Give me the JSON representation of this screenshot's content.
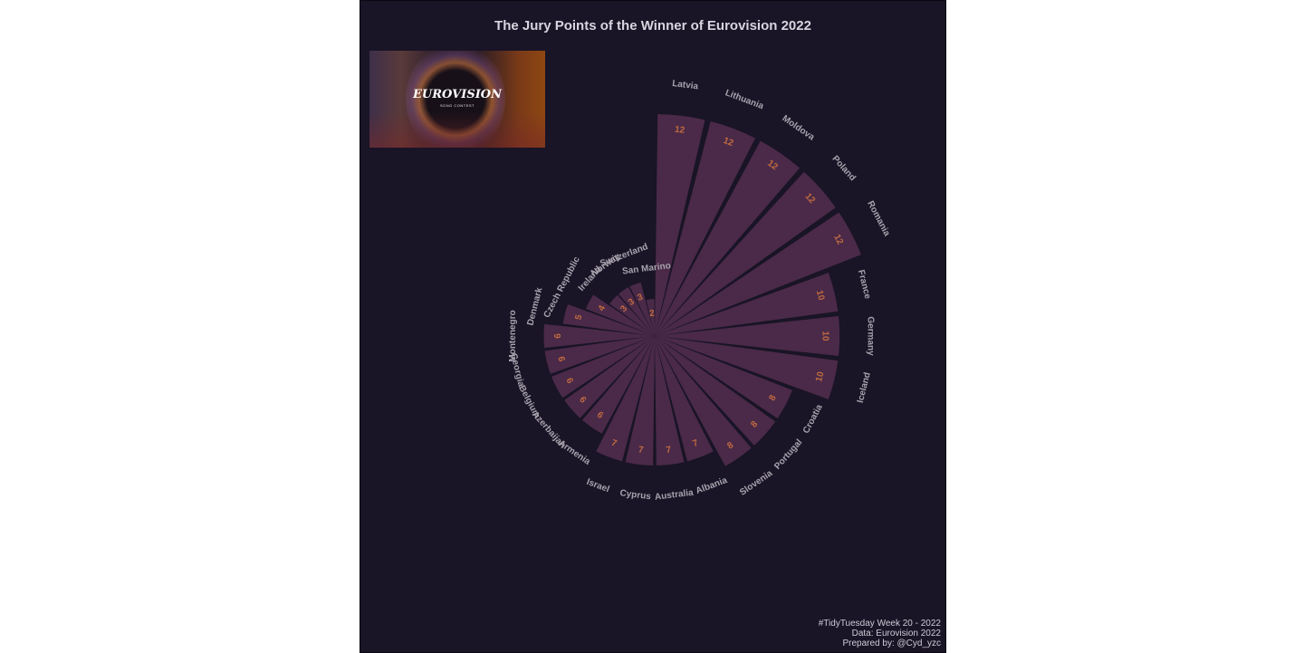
{
  "title": "The Jury Points of the Winner of Eurovision 2022",
  "logo": {
    "line1": "EUROVISION",
    "line2": "SONG CONTEST"
  },
  "caption": {
    "line1": "#TidyTuesday Week 20 - 2022",
    "line2": "Data: Eurovision 2022",
    "line3": "Prepared by: @Cyd_yzc"
  },
  "colors": {
    "background": "#191426",
    "bar": "#4a2a48",
    "value_label": "#c06a40",
    "country_label": "#a8a3ad"
  },
  "chart_data": {
    "type": "bar",
    "coordinate_system": "polar",
    "title": "The Jury Points of the Winner of Eurovision 2022",
    "categories": [
      "Latvia",
      "Lithuania",
      "Moldova",
      "Poland",
      "Romania",
      "France",
      "Germany",
      "Iceland",
      "Croatia",
      "Portugal",
      "Slovenia",
      "Albania",
      "Australia",
      "Cyprus",
      "Israel",
      "Armenia",
      "Azerbaijan",
      "Belgium",
      "Georgia",
      "Montenegro",
      "Denmark",
      "Czech Republic",
      "Ireland",
      "Norway",
      "Switzerland",
      "San Marino"
    ],
    "values": [
      12,
      12,
      12,
      12,
      12,
      10,
      10,
      10,
      8,
      8,
      8,
      7,
      7,
      7,
      7,
      6,
      6,
      6,
      6,
      6,
      5,
      4,
      3,
      3,
      3,
      2
    ],
    "ylim": [
      0,
      12
    ],
    "grid": false,
    "legend": "none"
  }
}
